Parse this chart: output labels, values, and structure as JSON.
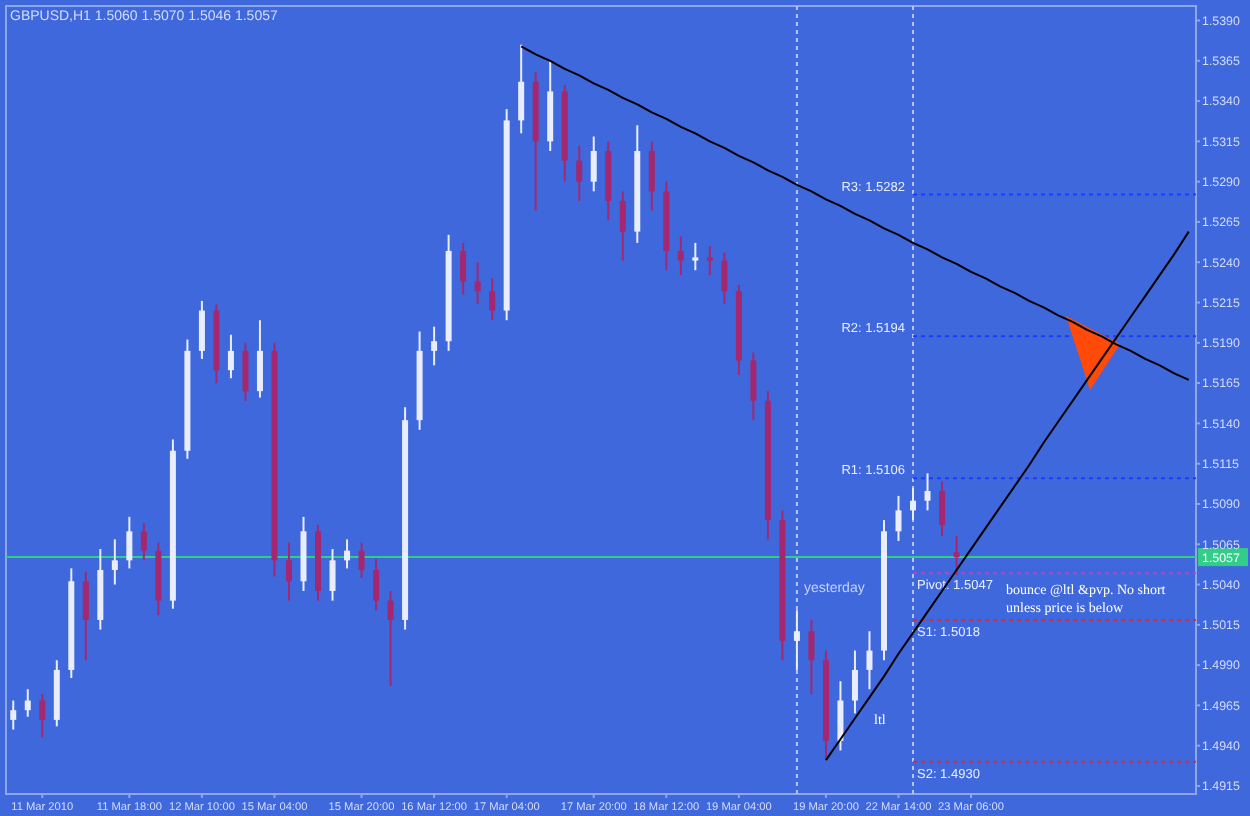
{
  "chart_data": {
    "type": "candlestick",
    "title": "GBPUSD,H1  1.5060 1.5070 1.5046 1.5057",
    "categories": [
      null,
      null,
      "11 Mar 2010",
      null,
      null,
      null,
      null,
      null,
      "11 Mar 18:00",
      null,
      null,
      null,
      null,
      "12 Mar 10:00",
      null,
      null,
      null,
      null,
      "15 Mar 04:00",
      null,
      null,
      null,
      null,
      null,
      "15 Mar 20:00",
      null,
      null,
      null,
      null,
      "16 Mar 12:00",
      null,
      null,
      null,
      null,
      "17 Mar 04:00",
      null,
      null,
      null,
      null,
      null,
      "17 Mar 20:00",
      null,
      null,
      null,
      null,
      "18 Mar 12:00",
      null,
      null,
      null,
      null,
      "19 Mar 04:00",
      null,
      null,
      null,
      null,
      null,
      "19 Mar 20:00",
      null,
      null,
      null,
      null,
      "22 Mar 14:00",
      null,
      null,
      null,
      null,
      "23 Mar 06:00",
      null,
      null,
      null,
      null,
      null,
      null,
      null,
      null,
      null,
      null,
      null,
      null,
      null,
      null,
      null
    ],
    "ohlc": [
      [
        1.4956,
        1.4968,
        1.495,
        1.4962
      ],
      [
        1.4962,
        1.4975,
        1.4958,
        1.4968
      ],
      [
        1.4968,
        1.4972,
        1.4945,
        1.4956
      ],
      [
        1.4956,
        1.4993,
        1.4952,
        1.4987
      ],
      [
        1.4987,
        1.505,
        1.4982,
        1.5042
      ],
      [
        1.5042,
        1.5048,
        1.4993,
        1.5018
      ],
      [
        1.5018,
        1.5062,
        1.5012,
        1.5049
      ],
      [
        1.5049,
        1.5068,
        1.504,
        1.5055
      ],
      [
        1.5055,
        1.5082,
        1.505,
        1.5073
      ],
      [
        1.5073,
        1.5078,
        1.5055,
        1.5061
      ],
      [
        1.5061,
        1.5066,
        1.5021,
        1.503
      ],
      [
        1.503,
        1.513,
        1.5025,
        1.5123
      ],
      [
        1.5123,
        1.5192,
        1.5118,
        1.5185
      ],
      [
        1.5185,
        1.5216,
        1.518,
        1.521
      ],
      [
        1.521,
        1.5214,
        1.5165,
        1.5173
      ],
      [
        1.5173,
        1.5195,
        1.5168,
        1.5185
      ],
      [
        1.5185,
        1.519,
        1.5154,
        1.516
      ],
      [
        1.516,
        1.5204,
        1.5156,
        1.5185
      ],
      [
        1.5185,
        1.519,
        1.5045,
        1.5055
      ],
      [
        1.5055,
        1.5066,
        1.503,
        1.5042
      ],
      [
        1.5042,
        1.5082,
        1.5036,
        1.5073
      ],
      [
        1.5073,
        1.5077,
        1.503,
        1.5036
      ],
      [
        1.5036,
        1.5062,
        1.503,
        1.5055
      ],
      [
        1.5055,
        1.5068,
        1.505,
        1.5061
      ],
      [
        1.5061,
        1.5066,
        1.5044,
        1.5049
      ],
      [
        1.5049,
        1.5056,
        1.5024,
        1.503
      ],
      [
        1.503,
        1.5036,
        1.4977,
        1.5018
      ],
      [
        1.5018,
        1.515,
        1.5012,
        1.5142
      ],
      [
        1.5142,
        1.5197,
        1.5136,
        1.5185
      ],
      [
        1.5185,
        1.52,
        1.5176,
        1.5191
      ],
      [
        1.5191,
        1.5257,
        1.5185,
        1.5247
      ],
      [
        1.5247,
        1.5252,
        1.522,
        1.5228
      ],
      [
        1.5228,
        1.524,
        1.5214,
        1.5222
      ],
      [
        1.5222,
        1.523,
        1.5204,
        1.521
      ],
      [
        1.521,
        1.5335,
        1.5204,
        1.5328
      ],
      [
        1.5328,
        1.5375,
        1.532,
        1.5352
      ],
      [
        1.5352,
        1.5358,
        1.5272,
        1.5315
      ],
      [
        1.5315,
        1.5365,
        1.5309,
        1.5346
      ],
      [
        1.5346,
        1.535,
        1.529,
        1.5303
      ],
      [
        1.5303,
        1.5312,
        1.5278,
        1.529
      ],
      [
        1.529,
        1.5318,
        1.5284,
        1.5309
      ],
      [
        1.5309,
        1.5315,
        1.5266,
        1.5278
      ],
      [
        1.5278,
        1.5284,
        1.5241,
        1.5259
      ],
      [
        1.5259,
        1.5325,
        1.5252,
        1.5309
      ],
      [
        1.5309,
        1.5315,
        1.5272,
        1.5284
      ],
      [
        1.5284,
        1.529,
        1.5235,
        1.5247
      ],
      [
        1.5247,
        1.5256,
        1.5232,
        1.5241
      ],
      [
        1.5241,
        1.5252,
        1.5235,
        1.5243
      ],
      [
        1.5243,
        1.525,
        1.5232,
        1.5241
      ],
      [
        1.5241,
        1.5246,
        1.5214,
        1.5222
      ],
      [
        1.5222,
        1.5226,
        1.517,
        1.5179
      ],
      [
        1.5179,
        1.5184,
        1.5142,
        1.5154
      ],
      [
        1.5154,
        1.516,
        1.5068,
        1.508
      ],
      [
        1.508,
        1.5086,
        1.4993,
        1.5005
      ],
      [
        1.5005,
        1.5024,
        1.4987,
        1.5011
      ],
      [
        1.5011,
        1.5018,
        1.4972,
        1.4993
      ],
      [
        1.4993,
        1.4999,
        1.4931,
        1.4943
      ],
      [
        1.4943,
        1.498,
        1.4937,
        1.4968
      ],
      [
        1.4968,
        1.4999,
        1.496,
        1.4987
      ],
      [
        1.4987,
        1.5011,
        1.4975,
        1.4999
      ],
      [
        1.4999,
        1.508,
        1.4993,
        1.5073
      ],
      [
        1.5073,
        1.5095,
        1.5067,
        1.5086
      ],
      [
        1.5086,
        1.51,
        1.508,
        1.5092
      ],
      [
        1.5092,
        1.5109,
        1.5086,
        1.5098
      ],
      [
        1.5098,
        1.5104,
        1.507,
        1.5077
      ],
      [
        1.506,
        1.507,
        1.5046,
        1.5057
      ],
      null,
      null,
      null,
      null,
      null,
      null,
      null,
      null,
      null,
      null,
      null,
      null,
      null,
      null,
      null,
      null
    ],
    "colors": [
      "#e8eeff",
      "#e8eeff",
      "#a3286f",
      "#e8eeff",
      "#e8eeff",
      "#a3286f",
      "#e8eeff",
      "#e8eeff",
      "#e8eeff",
      "#a3286f",
      "#a3286f",
      "#e8eeff",
      "#e8eeff",
      "#e8eeff",
      "#a3286f",
      "#e8eeff",
      "#a3286f",
      "#e8eeff",
      "#a3286f",
      "#a3286f",
      "#e8eeff",
      "#a3286f",
      "#e8eeff",
      "#e8eeff",
      "#a3286f",
      "#a3286f",
      "#a3286f",
      "#e8eeff",
      "#e8eeff",
      "#e8eeff",
      "#e8eeff",
      "#a3286f",
      "#a3286f",
      "#a3286f",
      "#e8eeff",
      "#e8eeff",
      "#a3286f",
      "#e8eeff",
      "#a3286f",
      "#a3286f",
      "#e8eeff",
      "#a3286f",
      "#a3286f",
      "#e8eeff",
      "#a3286f",
      "#a3286f",
      "#a3286f",
      "#e8eeff",
      "#a3286f",
      "#a3286f",
      "#a3286f",
      "#a3286f",
      "#a3286f",
      "#a3286f",
      "#e8eeff",
      "#a3286f",
      "#a3286f",
      "#e8eeff",
      "#e8eeff",
      "#e8eeff",
      "#e8eeff",
      "#e8eeff",
      "#e8eeff",
      "#e8eeff",
      "#a3286f",
      "#a3286f",
      null,
      null,
      null,
      null,
      null,
      null,
      null,
      null,
      null,
      null,
      null,
      null,
      null,
      null,
      null,
      null
    ],
    "ylim": [
      1.491,
      1.5399
    ],
    "yticks": [
      {
        "value": 1.539,
        "label": "1.5390"
      },
      1.5365,
      {
        "value": 1.534,
        "label": "1.5340"
      },
      1.5315,
      {
        "value": 1.529,
        "label": "1.5290"
      },
      1.5265,
      {
        "value": 1.524,
        "label": "1.5240"
      },
      1.5215,
      {
        "value": 1.519,
        "label": "1.5190"
      },
      1.5165,
      {
        "value": 1.514,
        "label": "1.5140"
      },
      1.5115,
      {
        "value": 1.509,
        "label": "1.5090"
      },
      1.5065,
      {
        "value": 1.504,
        "label": "1.5040"
      },
      1.5015,
      {
        "value": 1.499,
        "label": "1.4990"
      },
      1.4965,
      {
        "value": 1.494,
        "label": "1.4940"
      },
      1.4915
    ],
    "series": [
      {
        "type": "line",
        "color": "#000000",
        "values": [
          null,
          null,
          null,
          null,
          null,
          null,
          null,
          null,
          null,
          null,
          null,
          null,
          null,
          null,
          null,
          null,
          null,
          null,
          null,
          null,
          null,
          null,
          null,
          null,
          null,
          null,
          null,
          null,
          null,
          null,
          null,
          null,
          null,
          null,
          null,
          1.5374,
          1.5369,
          1.5365,
          1.536,
          1.5356,
          1.5351,
          1.5347,
          1.5342,
          1.5338,
          1.5333,
          1.5329,
          1.5324,
          1.532,
          1.5315,
          1.5311,
          1.5306,
          1.5302,
          1.5297,
          1.5293,
          1.5288,
          1.5284,
          1.5279,
          1.5275,
          1.527,
          1.5266,
          1.5261,
          1.5257,
          1.5252,
          1.5248,
          1.5243,
          1.5239,
          1.5234,
          1.523,
          1.5225,
          1.5221,
          1.5216,
          1.5212,
          1.5207,
          1.5203,
          1.5198,
          1.5194,
          1.5189,
          1.5185,
          1.518,
          1.5176,
          1.5171,
          1.5167
        ]
      },
      {
        "type": "line",
        "color": "#000000",
        "values": [
          null,
          null,
          null,
          null,
          null,
          null,
          null,
          null,
          null,
          null,
          null,
          null,
          null,
          null,
          null,
          null,
          null,
          null,
          null,
          null,
          null,
          null,
          null,
          null,
          null,
          null,
          null,
          null,
          null,
          null,
          null,
          null,
          null,
          null,
          null,
          null,
          null,
          null,
          null,
          null,
          null,
          null,
          null,
          null,
          null,
          null,
          null,
          null,
          null,
          null,
          null,
          null,
          null,
          null,
          null,
          null,
          1.4931,
          1.4944,
          1.4957,
          1.497,
          1.4983,
          1.4997,
          1.501,
          1.5023,
          1.5036,
          1.5049,
          1.5062,
          1.5075,
          1.5088,
          1.5101,
          1.5114,
          1.5128,
          1.5141,
          1.5154,
          1.5167,
          1.518,
          1.5193,
          1.5206,
          1.5219,
          1.5232,
          1.5245,
          1.5259
        ]
      }
    ],
    "ref_lines": [
      {
        "axis": "y",
        "value": 1.5057,
        "label": "1.5057",
        "color": "#33cc88",
        "line_style": "solid"
      },
      {
        "axis": "y",
        "value": 1.5282,
        "label": "R3: 1.5282",
        "color": "#1a3cff",
        "line_style": "dotted"
      },
      {
        "axis": "y",
        "value": 1.5194,
        "label": "R2: 1.5194",
        "color": "#1a3cff",
        "line_style": "dotted"
      },
      {
        "axis": "y",
        "value": 1.5106,
        "label": "R1: 1.5106",
        "color": "#1a3cff",
        "line_style": "dotted"
      },
      {
        "axis": "y",
        "value": 1.5047,
        "label": "Pivot: 1.5047",
        "color": "#c040c0",
        "line_style": "dotted"
      },
      {
        "axis": "y",
        "value": 1.5018,
        "label": "S1: 1.5018",
        "color": "#c83048",
        "line_style": "dotted"
      },
      {
        "axis": "y",
        "value": 1.493,
        "label": "S2: 1.4930",
        "color": "#c83048",
        "line_style": "dotted"
      }
    ],
    "annotations": [
      "ltl",
      "bounce @ltl &pvp. No short unless price is below",
      "yesterday"
    ]
  }
}
